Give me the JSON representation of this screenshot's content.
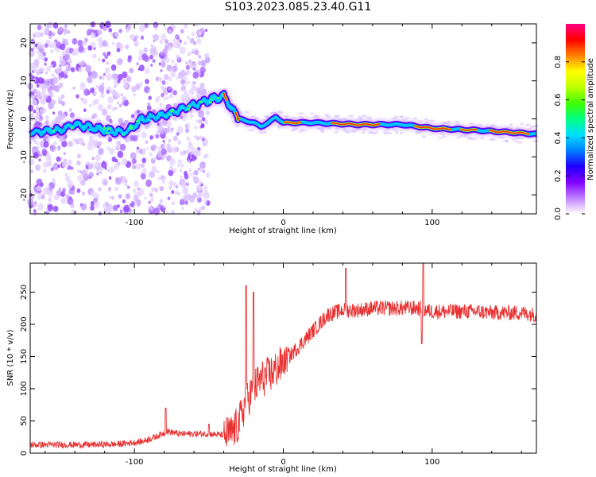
{
  "title": "S103.2023.085.23.40.G11",
  "chart_data": [
    {
      "type": "heatmap",
      "xlabel": "Height of straight line (km)",
      "ylabel": "Frequency (Hz)",
      "xlim": [
        -170,
        170
      ],
      "ylim": [
        -25,
        25
      ],
      "x_ticks": [
        -100,
        0,
        100
      ],
      "y_ticks": [
        -20,
        -10,
        0,
        10,
        20
      ],
      "colorbar": {
        "label": "Normalized spectral amplitude",
        "range": [
          0,
          1
        ],
        "ticks": [
          0.0,
          0.2,
          0.4,
          0.6,
          0.8
        ],
        "colormap": [
          "#ffffff",
          "#c080ff",
          "#8000ff",
          "#2000ff",
          "#0080ff",
          "#00e0ff",
          "#00ff80",
          "#40ff00",
          "#c0ff00",
          "#ffff00",
          "#ff8000",
          "#ff0000",
          "#ff0080"
        ]
      },
      "ridge": [
        {
          "x": -170,
          "f": -3.5
        },
        {
          "x": -150,
          "f": -3
        },
        {
          "x": -140,
          "f": -1.5
        },
        {
          "x": -120,
          "f": -3
        },
        {
          "x": -105,
          "f": -3.5
        },
        {
          "x": -95,
          "f": 0
        },
        {
          "x": -80,
          "f": 1
        },
        {
          "x": -65,
          "f": 3
        },
        {
          "x": -50,
          "f": 5
        },
        {
          "x": -40,
          "f": 6
        },
        {
          "x": -35,
          "f": 3
        },
        {
          "x": -30,
          "f": 0
        },
        {
          "x": -20,
          "f": -1
        },
        {
          "x": -15,
          "f": -2
        },
        {
          "x": -10,
          "f": -1
        },
        {
          "x": -5,
          "f": 0.5
        },
        {
          "x": 0,
          "f": -1
        },
        {
          "x": 20,
          "f": -1
        },
        {
          "x": 50,
          "f": -1.5
        },
        {
          "x": 80,
          "f": -1.5
        },
        {
          "x": 100,
          "f": -2.5
        },
        {
          "x": 130,
          "f": -3
        },
        {
          "x": 170,
          "f": -4
        }
      ]
    },
    {
      "type": "line",
      "xlabel": "Height of straight line (km)",
      "ylabel": "SNR (10 * v/v)",
      "xlim": [
        -170,
        170
      ],
      "ylim": [
        0,
        295
      ],
      "x_ticks": [
        -100,
        0,
        100
      ],
      "y_ticks": [
        0,
        50,
        100,
        150,
        200,
        250
      ],
      "color": "#e83030",
      "series": [
        {
          "values_x": [
            -170,
            -150,
            -130,
            -110,
            -95,
            -85,
            -78,
            -70,
            -60,
            -50,
            -40,
            -35,
            -30,
            -25,
            -20,
            -15,
            -10,
            -5,
            0,
            10,
            20,
            30,
            40,
            50,
            60,
            70,
            80,
            90,
            100,
            110,
            120,
            130,
            140,
            150,
            160,
            170
          ],
          "values_y": [
            13,
            13,
            13,
            14,
            18,
            26,
            34,
            30,
            30,
            30,
            28,
            30,
            45,
            80,
            100,
            115,
            120,
            130,
            140,
            165,
            190,
            215,
            222,
            222,
            225,
            225,
            225,
            225,
            220,
            220,
            220,
            220,
            218,
            218,
            218,
            215
          ]
        }
      ],
      "spikes": [
        {
          "x": -79,
          "y": 70
        },
        {
          "x": -50,
          "y": 45
        },
        {
          "x": -25,
          "y": 260
        },
        {
          "x": -20,
          "y": 250
        },
        {
          "x": 42,
          "y": 287
        },
        {
          "x": 94,
          "y": 295
        },
        {
          "x": 93,
          "y": 170
        }
      ]
    }
  ]
}
